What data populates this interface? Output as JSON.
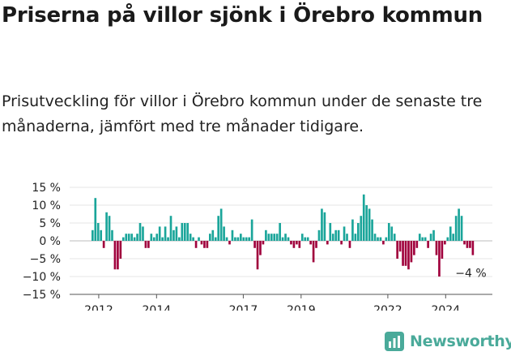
{
  "title": "Priserna på villor sjönk i Örebro kommun",
  "subtitle": "Prisutveckling för villor i Örebro kommun under de senaste tre månaderna, jämfört med tre månader tidigare.",
  "brand": {
    "name": "Newsworthy",
    "logo_icon": "newsworthy-logo-icon",
    "color": "#4aaa9a"
  },
  "chart_data": {
    "type": "bar",
    "y_unit": "%",
    "ylim": [
      -15,
      15
    ],
    "y_ticks": [
      15,
      10,
      5,
      0,
      -5,
      -10,
      -15
    ],
    "y_tick_labels": [
      "15 %",
      "10 %",
      "5 %",
      "0 %",
      "−5 %",
      "−10 %",
      "−15 %"
    ],
    "x_tick_labels": [
      {
        "label": "2012",
        "year": 2012
      },
      {
        "label": "2014",
        "year": 2014
      },
      {
        "label": "2017",
        "year": 2017
      },
      {
        "label": "2019",
        "year": 2019
      },
      {
        "label": "2022",
        "year": 2022
      },
      {
        "label": "2024",
        "year": 2024
      }
    ],
    "grid": true,
    "positive_color": "#1aa59a",
    "negative_color": "#a0003c",
    "start_year": 2011.75,
    "end_year": 2025.0,
    "values": [
      3,
      12,
      5,
      3,
      -2,
      8,
      7,
      3,
      -8,
      -8,
      -5,
      1,
      2,
      2,
      2,
      1,
      2,
      5,
      4,
      -2,
      -2,
      2,
      1,
      2,
      4,
      1,
      4,
      1,
      7,
      3,
      4,
      1,
      5,
      5,
      5,
      2,
      1,
      -2,
      1,
      -1,
      -2,
      -2,
      2,
      3,
      1,
      7,
      9,
      4,
      1,
      -1,
      3,
      1,
      1,
      2,
      1,
      1,
      1,
      6,
      -2,
      -8,
      -4,
      -1,
      3,
      2,
      2,
      2,
      2,
      5,
      1,
      2,
      1,
      -1,
      -2,
      -1,
      -2,
      2,
      1,
      1,
      -1,
      -6,
      -2,
      3,
      9,
      8,
      -1,
      5,
      2,
      3,
      3,
      -1,
      4,
      2,
      -2,
      6,
      2,
      5,
      7,
      13,
      10,
      9,
      6,
      2,
      1,
      1,
      -1,
      1,
      5,
      4,
      2,
      -5,
      -3,
      -7,
      -7,
      -8,
      -6,
      -4,
      -2,
      2,
      1,
      1,
      -2,
      2,
      3,
      -4,
      -10,
      -5,
      -1,
      1,
      4,
      2,
      7,
      9,
      7,
      -1,
      -2,
      -2,
      -4
    ],
    "annotation": {
      "label": "−4 %",
      "value": -4
    }
  }
}
